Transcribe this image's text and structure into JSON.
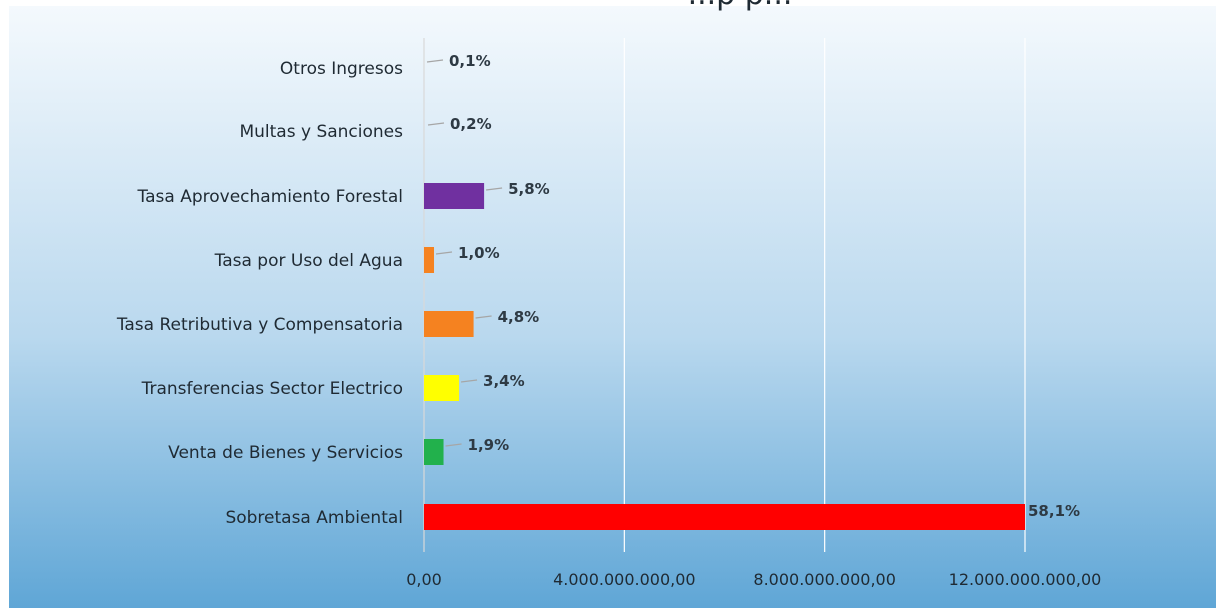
{
  "chart_data": {
    "type": "bar",
    "orientation": "horizontal",
    "title": "...p p...",
    "categories": [
      "Sobretasa Ambiental",
      "Venta de Bienes y Servicios",
      "Transferencias Sector Electrico",
      "Tasa Retributiva y Compensatoria",
      "Tasa por Uso del Agua",
      "Tasa Aprovechamiento Forestal",
      "Multas y Sanciones",
      "Otros Ingresos"
    ],
    "values": [
      12000000000,
      390000000,
      700000000,
      990000000,
      200000000,
      1200000000,
      40000000,
      20000000
    ],
    "data_labels": [
      "58,1%",
      "1,9%",
      "3,4%",
      "4,8%",
      "1,0%",
      "5,8%",
      "0,2%",
      "0,1%"
    ],
    "colors": [
      "#ff0000",
      "#22b14c",
      "#ffff00",
      "#f58220",
      "#f58220",
      "#7030a0",
      "#7f7f7f",
      "#7f7f7f"
    ],
    "xlim": [
      0,
      14000000000
    ],
    "x_ticks": [
      0,
      4000000000,
      8000000000,
      12000000000
    ],
    "x_tick_labels": [
      "0,00",
      "4.000.000.000,00",
      "8.000.000.000,00",
      "12.000.000.000,00"
    ],
    "grid": true,
    "legend": "none"
  }
}
